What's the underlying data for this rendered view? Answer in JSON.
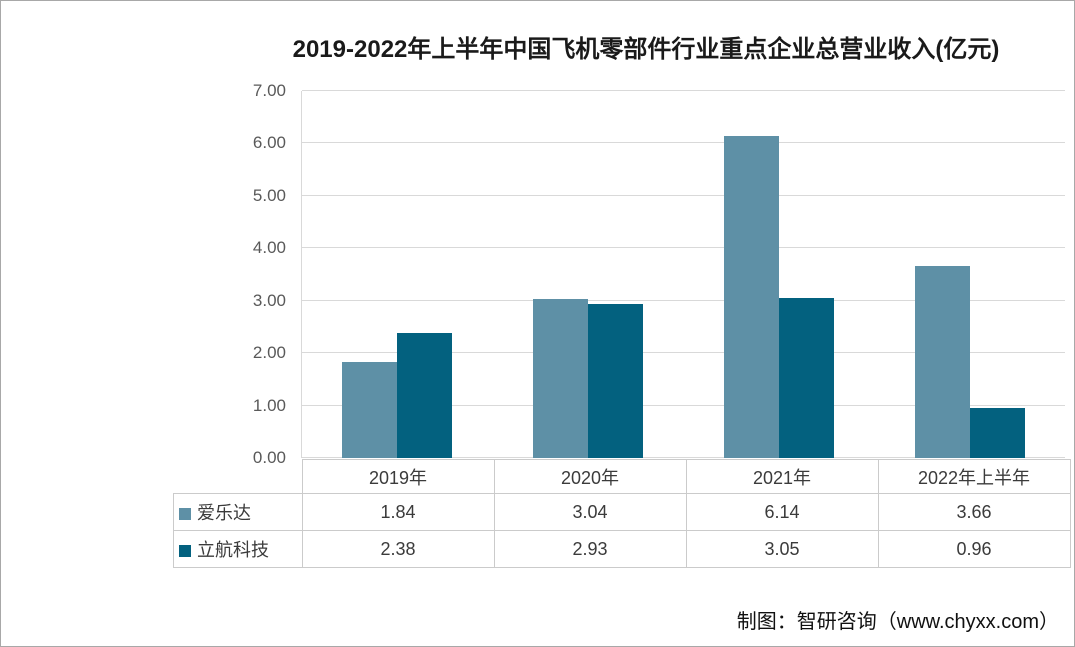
{
  "title": "2019-2022年上半年中国飞机零部件行业重点企业总营业收入(亿元)",
  "credit": "制图：智研咨询（www.chyxx.com）",
  "colors": {
    "series_light": "#5E90A6",
    "series_dark": "#03617F",
    "gridline": "#D9D9D9",
    "table_border": "#CBCBCB",
    "axis_label": "#595959",
    "frame_border": "#A8A8A8"
  },
  "chart_data": {
    "type": "bar",
    "title": "2019-2022年上半年中国飞机零部件行业重点企业总营业收入(亿元)",
    "categories": [
      "2019年",
      "2020年",
      "2021年",
      "2022年上半年"
    ],
    "series": [
      {
        "name": "爱乐达",
        "color": "#5E90A6",
        "values": [
          1.84,
          3.04,
          6.14,
          3.66
        ]
      },
      {
        "name": "立航科技",
        "color": "#03617F",
        "values": [
          2.38,
          2.93,
          3.05,
          0.96
        ]
      }
    ],
    "xlabel": "",
    "ylabel": "",
    "ylim": [
      0,
      7
    ],
    "ytick_labels": [
      "0.00",
      "1.00",
      "2.00",
      "3.00",
      "4.00",
      "5.00",
      "6.00",
      "7.00"
    ],
    "grid": true,
    "legend_position": "data-table-left",
    "value_decimals": 2
  }
}
